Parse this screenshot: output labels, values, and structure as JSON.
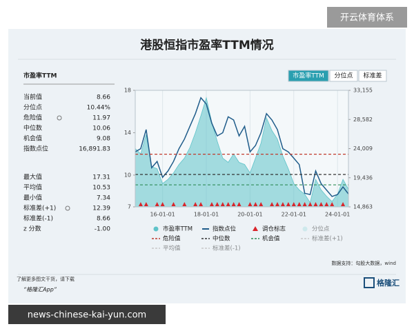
{
  "header": {
    "badge": "开云体育体系",
    "title": "港股恒指市盈率TTM情况"
  },
  "panel": {
    "title": "市盈率TTM",
    "tabs": [
      "市盈率TTM",
      "分位点",
      "标准差"
    ],
    "rows": [
      [
        "当前值",
        "8.66"
      ],
      [
        "分位点",
        "10.44%"
      ],
      [
        "危险值",
        "11.97"
      ],
      [
        "中位数",
        "10.06"
      ],
      [
        "机会值",
        "9.08"
      ],
      [
        "指数点位",
        "16,891.83"
      ]
    ],
    "rows2": [
      [
        "最大值",
        "17.31"
      ],
      [
        "平均值",
        "10.53"
      ],
      [
        "最小值",
        "7.34"
      ],
      [
        "标准差(+1)",
        "12.39"
      ],
      [
        "标准差(-1)",
        "8.66"
      ],
      [
        "z 分数",
        "-1.00"
      ]
    ]
  },
  "chart_data": {
    "type": "line",
    "categories": [
      null,
      null,
      null,
      null,
      null,
      "16-01-01",
      null,
      null,
      null,
      null,
      null,
      null,
      null,
      "18-01-01",
      null,
      null,
      null,
      null,
      null,
      null,
      null,
      "20-01-01",
      null,
      null,
      null,
      null,
      null,
      null,
      null,
      "22-01-01",
      null,
      null,
      null,
      null,
      null,
      null,
      null,
      "24-01-01",
      null,
      null
    ],
    "series": [
      {
        "name": "市盈率TTM",
        "color": "#5fc3c9",
        "values": [
          12.5,
          12,
          13.8,
          10.8,
          10.6,
          9.2,
          9.6,
          10.2,
          11,
          11.6,
          12.6,
          14,
          15.6,
          17.3,
          15,
          13.2,
          11.6,
          11.2,
          12,
          11.2,
          11,
          10.2,
          11.6,
          13,
          15.4,
          14.2,
          13.4,
          11.8,
          10.6,
          9.2,
          8.6,
          8.2,
          7.4,
          9.6,
          8.6,
          8,
          7.5,
          8.2,
          9.6,
          8.66
        ]
      },
      {
        "name": "指数点位",
        "color": "#1f5c8a",
        "axis": "y2",
        "values": [
          23500,
          24000,
          27000,
          21000,
          22000,
          19500,
          20500,
          22000,
          24000,
          25500,
          27500,
          29500,
          32000,
          31000,
          28000,
          26000,
          26500,
          29000,
          28500,
          26000,
          27500,
          23500,
          24500,
          26500,
          29500,
          28500,
          27000,
          24000,
          23500,
          22500,
          21500,
          17000,
          16800,
          20500,
          18500,
          17500,
          16500,
          16800,
          18000,
          16891.83
        ]
      },
      {
        "name": "分位点",
        "color": "#a8dde0",
        "hidden": true
      }
    ],
    "signals": {
      "name": "调仓标志",
      "color": "#d9252b",
      "positions": [
        1,
        2,
        4,
        5,
        7,
        9,
        11,
        12,
        14,
        15,
        16,
        17,
        18,
        19,
        21,
        22,
        23,
        25,
        26,
        27,
        28,
        29,
        30,
        31,
        32,
        33,
        34,
        35,
        36,
        38
      ]
    },
    "reference_lines": [
      {
        "name": "危险值",
        "value": 11.97,
        "color": "#c0392b"
      },
      {
        "name": "中位数",
        "value": 10.06,
        "color": "#333333"
      },
      {
        "name": "机会值",
        "value": 9.08,
        "color": "#2e8b57"
      },
      {
        "name": "标准差(+1)",
        "value": 12.39,
        "color": "#c8c8c8",
        "hidden": true
      },
      {
        "name": "平均值",
        "value": 10.53,
        "color": "#c8c8c8",
        "hidden": true
      },
      {
        "name": "标准差(-1)",
        "value": 8.66,
        "color": "#c8c8c8",
        "hidden": true
      }
    ],
    "ylim": [
      7,
      18
    ],
    "yticks": [
      7,
      10,
      14,
      18
    ],
    "y2lim": [
      14863,
      33155
    ],
    "y2ticks": [
      {
        "value": 14863,
        "label": "14,863"
      },
      {
        "value": 19436,
        "label": "19,436"
      },
      {
        "value": 24009,
        "label": "24,009"
      },
      {
        "value": 28582,
        "label": "28,582"
      },
      {
        "value": 33155,
        "label": "33,155"
      }
    ]
  },
  "source": "数据支持：勾股大数据，wind",
  "footer": {
    "note": "了解更多图文干货，请下载",
    "app": "“格隆汇App”",
    "logo": "格隆汇"
  },
  "url": "news-chinese-kai-yun.com"
}
